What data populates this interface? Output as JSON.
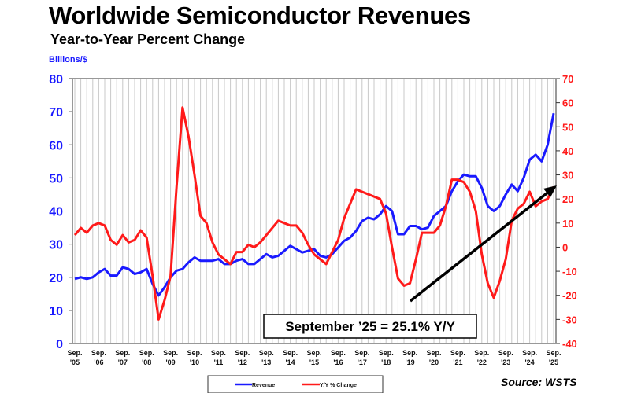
{
  "title": "Worldwide Semiconductor Revenues",
  "subtitle": "Year-to-Year Percent Change",
  "source": "Source: WSTS",
  "chart_data": {
    "type": "line",
    "left_axis_label": "Billions/$",
    "ylim_left": [
      0,
      80
    ],
    "yticks_left": [
      0,
      10,
      20,
      30,
      40,
      50,
      60,
      70,
      80
    ],
    "ylim_right": [
      -40,
      70
    ],
    "yticks_right": [
      -40,
      -30,
      -20,
      -10,
      0,
      10,
      20,
      30,
      40,
      50,
      60,
      70
    ],
    "x_tick_labels": [
      [
        "Sep.",
        "'05"
      ],
      [
        "Sep.",
        "'06"
      ],
      [
        "Sep.",
        "'07"
      ],
      [
        "Sep.",
        "'08"
      ],
      [
        "Sep.",
        "'09"
      ],
      [
        "Sep.",
        "'10"
      ],
      [
        "Sep.",
        "'11"
      ],
      [
        "Sep.",
        "'12"
      ],
      [
        "Sep.",
        "'13"
      ],
      [
        "Sep.",
        "'14"
      ],
      [
        "Sep.",
        "'15"
      ],
      [
        "Sep.",
        "'16"
      ],
      [
        "Sep.",
        "'17"
      ],
      [
        "Sep.",
        "'18"
      ],
      [
        "Sep.",
        "'19"
      ],
      [
        "Sep.",
        "'20"
      ],
      [
        "Sep.",
        "'21"
      ],
      [
        "Sep.",
        "'22"
      ],
      [
        "Sep.",
        "'23"
      ],
      [
        "Sep.",
        "'24"
      ],
      [
        "Sep.",
        "'25"
      ]
    ],
    "x_start": "2005-09",
    "x_end": "2025-09",
    "x_step": "quarter",
    "grid": "vertical",
    "legend_placement": "bottom-center",
    "annotation": "September ’25 = 25.1% Y/Y",
    "colors": {
      "revenue": "#1a1aff",
      "yoy": "#ff1a1a",
      "axis_left": "#1a1aff",
      "axis_right": "#ff1a1a"
    },
    "series": [
      {
        "name": "Revenue",
        "axis": "left",
        "values": [
          19.5,
          20,
          19.5,
          20,
          21.5,
          22.5,
          20.5,
          20.5,
          23,
          22.5,
          21,
          21.5,
          22.5,
          18,
          14.5,
          17,
          20,
          22,
          22.5,
          24.5,
          26,
          25,
          25,
          25,
          25.5,
          24,
          24,
          25,
          25.5,
          24,
          24,
          25.5,
          27,
          26,
          26.5,
          28,
          29.5,
          28.5,
          27.5,
          28,
          28.5,
          26.5,
          26,
          27,
          29,
          31,
          32,
          34,
          37,
          38,
          37.5,
          39,
          41.5,
          40,
          33,
          33,
          35.5,
          35.5,
          34.5,
          35,
          38.5,
          40,
          41.5,
          46,
          49,
          51,
          50.5,
          50.5,
          47,
          41.5,
          40,
          41.5,
          45,
          48,
          46,
          50,
          55.5,
          57,
          55,
          60,
          69.5
        ]
      },
      {
        "name": "Y/Y % Change",
        "axis": "right",
        "values": [
          5,
          8,
          6,
          9,
          10,
          9,
          3,
          1,
          5,
          2,
          3,
          7,
          4,
          -12,
          -30,
          -22,
          -12,
          25,
          58,
          46,
          30,
          13,
          10,
          2,
          -3,
          -5,
          -7,
          -2,
          -2,
          1,
          0,
          2,
          5,
          8,
          11,
          10,
          9,
          9,
          6,
          1,
          -3,
          -5,
          -7,
          -2,
          3,
          12,
          18,
          24,
          23,
          22,
          21,
          20,
          14,
          0,
          -13,
          -16,
          -15,
          -5,
          6,
          6,
          6,
          9,
          17,
          28,
          28,
          27,
          23,
          15,
          -3,
          -15,
          -21,
          -14,
          -5,
          11,
          16,
          18,
          23,
          17,
          19,
          20,
          25.1
        ]
      }
    ]
  }
}
